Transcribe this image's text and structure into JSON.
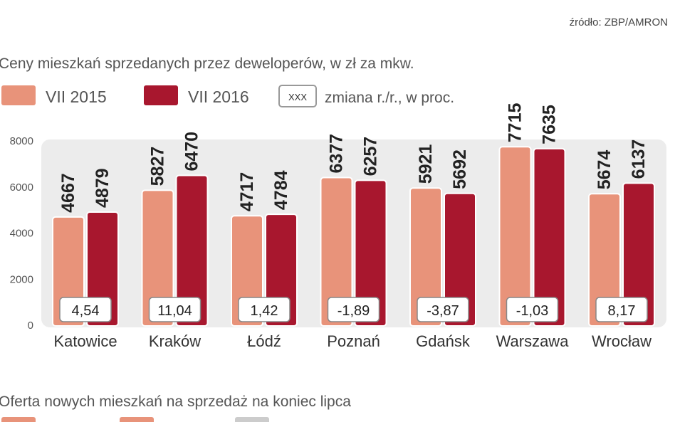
{
  "source": "źródło: ZBP/AMRON",
  "chart_data": {
    "type": "bar",
    "title": "Ceny mieszkań sprzedanych przez deweloperów, w zł za mkw.",
    "categories": [
      "Katowice",
      "Kraków",
      "Łódź",
      "Poznań",
      "Gdańsk",
      "Warszawa",
      "Wrocław"
    ],
    "series": [
      {
        "name": "VII 2015",
        "color": "#e8937a",
        "values": [
          4667,
          5827,
          4717,
          6377,
          5921,
          7715,
          5674
        ]
      },
      {
        "name": "VII 2016",
        "color": "#a8172e",
        "values": [
          4879,
          6470,
          4784,
          6257,
          5692,
          7635,
          6137
        ]
      }
    ],
    "change_legend": {
      "box": "XXX",
      "label": "zmiana r./r., w proc."
    },
    "change_pct": [
      "4,54",
      "11,04",
      "1,42",
      "-1,89",
      "-3,87",
      "-1,03",
      "8,17"
    ],
    "yticks": [
      0,
      2000,
      4000,
      6000,
      8000
    ],
    "ylim": [
      0,
      8000
    ],
    "grid": false,
    "legend_placement": "top-left"
  },
  "next_section": {
    "title": "Oferta nowych mieszkań na  sprzedaż na koniec lipca"
  }
}
